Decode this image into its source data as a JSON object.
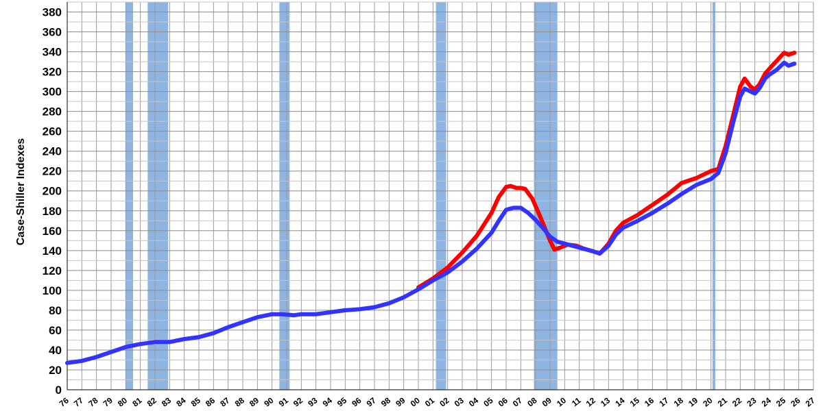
{
  "chart_data": {
    "type": "line",
    "title": "",
    "ylabel": "Case-Shiller Indexes",
    "xlabel": "",
    "ylim": [
      0,
      390
    ],
    "yticks": [
      0,
      20,
      40,
      60,
      80,
      100,
      120,
      140,
      160,
      180,
      200,
      220,
      240,
      260,
      280,
      300,
      320,
      340,
      360,
      380
    ],
    "xlim": [
      1976,
      2027
    ],
    "xtick_labels": [
      "76",
      "77",
      "78",
      "79",
      "80",
      "81",
      "82",
      "83",
      "84",
      "85",
      "86",
      "87",
      "88",
      "89",
      "90",
      "91",
      "92",
      "93",
      "94",
      "95",
      "96",
      "97",
      "98",
      "99",
      "00",
      "01",
      "02",
      "03",
      "04",
      "05",
      "06",
      "07",
      "08",
      "09",
      "10",
      "11",
      "12",
      "13",
      "14",
      "15",
      "16",
      "17",
      "18",
      "19",
      "20",
      "21",
      "22",
      "23",
      "24",
      "25",
      "26",
      "27"
    ],
    "grid": true,
    "recessions": [
      {
        "start": 1980.0,
        "end": 1980.5
      },
      {
        "start": 1981.5,
        "end": 1982.9
      },
      {
        "start": 1990.5,
        "end": 1991.2
      },
      {
        "start": 2001.2,
        "end": 2001.9
      },
      {
        "start": 2007.9,
        "end": 2009.5
      },
      {
        "start": 2020.1,
        "end": 2020.3
      }
    ],
    "recession_color": "#7aa7dc",
    "series": [
      {
        "color": "#ff0000",
        "x": [
          2000,
          2001,
          2002,
          2003,
          2004,
          2005,
          2005.5,
          2006,
          2006.3,
          2006.7,
          2007.0,
          2007.3,
          2007.8,
          2008.3,
          2009.0,
          2009.3,
          2009.7,
          2010.2,
          2010.8,
          2011.3,
          2012.0,
          2012.4,
          2013,
          2013.5,
          2014,
          2015,
          2016,
          2017,
          2018,
          2019,
          2020,
          2020.5,
          2021,
          2021.5,
          2022.0,
          2022.3,
          2022.7,
          2023.0,
          2023.3,
          2023.7,
          2024.0,
          2024.5,
          2025.0,
          2025.3,
          2025.7
        ],
        "values": [
          103,
          112,
          123,
          138,
          155,
          178,
          194,
          204,
          205,
          203,
          203,
          202,
          192,
          175,
          150,
          141,
          143,
          146,
          145,
          142,
          139,
          137,
          147,
          160,
          168,
          176,
          186,
          196,
          208,
          213,
          220,
          222,
          245,
          275,
          305,
          313,
          305,
          302,
          307,
          318,
          323,
          331,
          339,
          337,
          339
        ]
      },
      {
        "color": "#3333ff",
        "x": [
          1976,
          1977,
          1978,
          1979,
          1980,
          1981,
          1982,
          1983,
          1984,
          1985,
          1986,
          1987,
          1988,
          1989,
          1990,
          1990.7,
          1991.5,
          1992,
          1993,
          1994,
          1995,
          1996,
          1997,
          1998,
          1999,
          2000,
          2001,
          2002,
          2003,
          2004,
          2005,
          2005.5,
          2006,
          2006.5,
          2007.0,
          2007.5,
          2008.0,
          2008.5,
          2009.0,
          2009.5,
          2010.0,
          2010.5,
          2011.0,
          2011.5,
          2012.0,
          2012.4,
          2013,
          2013.5,
          2014,
          2015,
          2016,
          2017,
          2018,
          2019,
          2020,
          2020.5,
          2021,
          2021.5,
          2022.0,
          2022.3,
          2022.7,
          2023.0,
          2023.3,
          2023.7,
          2024.0,
          2024.5,
          2025.0,
          2025.3,
          2025.7
        ],
        "values": [
          27,
          29,
          33,
          38,
          43,
          46,
          48,
          48,
          51,
          53,
          57,
          63,
          68,
          73,
          76,
          76,
          75,
          76,
          76,
          78,
          80,
          81,
          83,
          87,
          93,
          101,
          110,
          118,
          129,
          142,
          158,
          170,
          181,
          183,
          183,
          178,
          171,
          163,
          154,
          149,
          147,
          145,
          143,
          141,
          139,
          137,
          145,
          156,
          163,
          170,
          178,
          187,
          197,
          206,
          212,
          218,
          238,
          268,
          295,
          303,
          300,
          298,
          303,
          313,
          317,
          322,
          329,
          326,
          328
        ]
      }
    ]
  }
}
